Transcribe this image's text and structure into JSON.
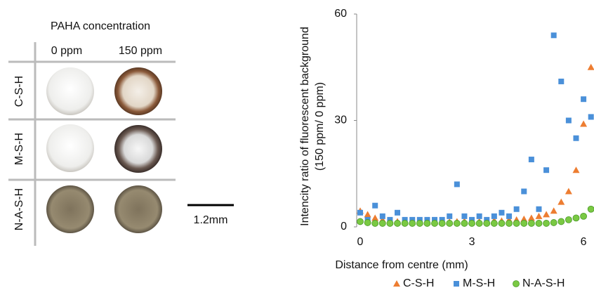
{
  "photo_panel": {
    "title": "PAHA concentration",
    "columns": [
      "0 ppm",
      "150 ppm"
    ],
    "rows": [
      "C-S-H",
      "M-S-H",
      "N-A-S-H"
    ],
    "scale_bar": "1.2mm"
  },
  "chart_data": {
    "type": "scatter",
    "xlabel": "Distance from centre (mm)",
    "ylabel": [
      "Intencity ratio of fluorescent background",
      "(150 ppm/ 0 ppm)"
    ],
    "x": [
      0,
      0.2,
      0.4,
      0.6,
      0.8,
      1.0,
      1.2,
      1.4,
      1.6,
      1.8,
      2.0,
      2.2,
      2.4,
      2.6,
      2.8,
      3.0,
      3.2,
      3.4,
      3.6,
      3.8,
      4.0,
      4.2,
      4.4,
      4.6,
      4.8,
      5.0,
      5.2,
      5.4,
      5.6,
      5.8,
      6.0,
      6.2
    ],
    "series": [
      {
        "name": "C-S-H",
        "color": "#ed7d31",
        "marker": "triangle",
        "values": [
          4.5,
          3.5,
          2.5,
          2,
          1.8,
          1.5,
          1.5,
          1.4,
          1.5,
          1.4,
          1.5,
          1.5,
          1.4,
          1.5,
          1.6,
          1.5,
          1.5,
          1.6,
          1.8,
          1.7,
          2,
          2,
          2.2,
          2.5,
          3,
          3.5,
          4.5,
          7,
          10,
          16,
          29,
          45
        ]
      },
      {
        "name": "M-S-H",
        "color": "#4a90d9",
        "marker": "square",
        "values": [
          4,
          2,
          6,
          3,
          2,
          4,
          2,
          2,
          2,
          2,
          2,
          2,
          3,
          12,
          3,
          2,
          3,
          2,
          3,
          4,
          3,
          5,
          10,
          19,
          5,
          16,
          54,
          41,
          30,
          25,
          36,
          31
        ]
      },
      {
        "name": "N-A-S-H",
        "color": "#7ac943",
        "marker": "circle",
        "values": [
          1.5,
          1.2,
          1,
          1,
          1,
          1,
          1,
          1,
          1,
          1,
          1,
          1,
          1,
          1,
          1,
          1,
          1,
          1,
          1,
          1,
          1,
          1,
          1,
          1,
          1,
          1,
          1.2,
          1.5,
          2,
          2.5,
          3,
          5
        ]
      }
    ],
    "xlim": [
      0,
      6.3
    ],
    "ylim": [
      0,
      60
    ],
    "xticks": [
      0,
      3,
      6
    ],
    "yticks": [
      0,
      30,
      60
    ],
    "grid": false,
    "legend": "bottom"
  }
}
